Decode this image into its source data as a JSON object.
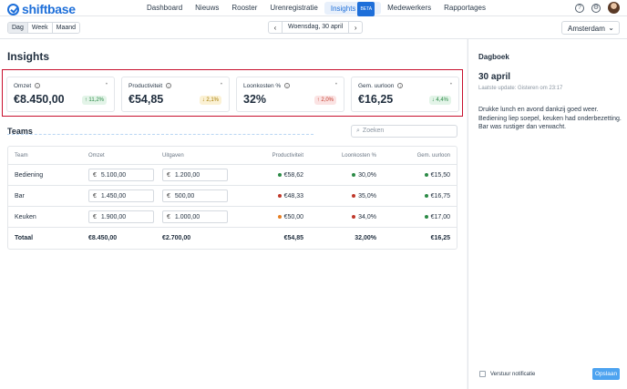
{
  "app": {
    "name": "shiftbase"
  },
  "nav": {
    "items": [
      {
        "label": "Dashboard"
      },
      {
        "label": "Nieuws"
      },
      {
        "label": "Rooster"
      },
      {
        "label": "Urenregistratie"
      },
      {
        "label": "Insights",
        "badge": "BETA",
        "active": true
      },
      {
        "label": "Medewerkers"
      },
      {
        "label": "Rapportages"
      }
    ],
    "help_icon": "help-circle-icon",
    "settings_icon": "gear-icon"
  },
  "toolbar": {
    "view_modes": [
      "Dag",
      "Week",
      "Maand"
    ],
    "active_view": "Dag",
    "date": "Woensdag, 30 april",
    "location": "Amsterdam"
  },
  "page": {
    "title": "Insights"
  },
  "kpis": [
    {
      "label": "Omzet",
      "value": "€8.450,00",
      "change": "11,2%",
      "direction": "up",
      "tone": "green"
    },
    {
      "label": "Productiviteit",
      "value": "€54,85",
      "change": "2,1%",
      "direction": "down",
      "tone": "yellow"
    },
    {
      "label": "Loonkosten %",
      "value": "32%",
      "change": "2,0%",
      "direction": "up",
      "tone": "red"
    },
    {
      "label": "Gem. uurloon",
      "value": "€16,25",
      "change": "4,4%",
      "direction": "down",
      "tone": "green"
    }
  ],
  "teams": {
    "title": "Teams",
    "search_placeholder": "Zoeken",
    "columns": [
      "Team",
      "Omzet",
      "Uitgaven",
      "Productiviteit",
      "Loonkosten %",
      "Gem. uurloon"
    ],
    "currency": "€",
    "rows": [
      {
        "team": "Bediening",
        "omzet": "5.100,00",
        "uitgaven": "1.200,00",
        "productiviteit": "€58,62",
        "prod_color": "#2b8a46",
        "loonkosten": "30,0%",
        "loon_color": "#2b8a46",
        "uurloon": "€15,50",
        "uur_color": "#2b8a46"
      },
      {
        "team": "Bar",
        "omzet": "1.450,00",
        "uitgaven": "500,00",
        "productiviteit": "€48,33",
        "prod_color": "#c0392b",
        "loonkosten": "35,0%",
        "loon_color": "#c0392b",
        "uurloon": "€16,75",
        "uur_color": "#2b8a46"
      },
      {
        "team": "Keuken",
        "omzet": "1.900,00",
        "uitgaven": "1.000,00",
        "productiviteit": "€50,00",
        "prod_color": "#e67e22",
        "loonkosten": "34,0%",
        "loon_color": "#c0392b",
        "uurloon": "€17,00",
        "uur_color": "#2b8a46"
      }
    ],
    "total": {
      "label": "Totaal",
      "omzet": "€8.450,00",
      "uitgaven": "€2.700,00",
      "productiviteit": "€54,85",
      "loonkosten": "32,00%",
      "uurloon": "€16,25"
    }
  },
  "dagboek": {
    "title": "Dagboek",
    "date": "30 april",
    "last_update": "Laatste update: Gisteren om 23:17",
    "text": "Drukke lunch en avond dankzij goed weer. Bediening liep soepel, keuken had onderbezetting. Bar was rustiger dan verwacht.",
    "notify_label": "Verstuur notificatie",
    "save_label": "Opslaan"
  }
}
